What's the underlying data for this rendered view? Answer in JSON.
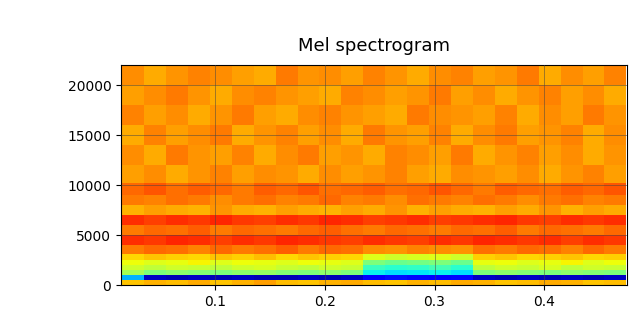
{
  "chart_data": {
    "type": "heatmap",
    "title": "Mel spectrogram",
    "color": "jet",
    "grid": true,
    "x": [
      0.025,
      0.045,
      0.065,
      0.085,
      0.105,
      0.125,
      0.145,
      0.165,
      0.185,
      0.205,
      0.225,
      0.245,
      0.265,
      0.285,
      0.305,
      0.325,
      0.345,
      0.365,
      0.385,
      0.405,
      0.425,
      0.445,
      0.465
    ],
    "y": [
      250,
      750,
      1250,
      1750,
      2250,
      2750,
      3500,
      4500,
      5500,
      6500,
      7500,
      8500,
      9500,
      11000,
      13000,
      15000,
      17000,
      19000,
      21000
    ],
    "cells": [
      [
        0.7,
        0.72,
        0.71,
        0.73,
        0.7,
        0.72,
        0.74,
        0.71,
        0.7,
        0.72,
        0.73,
        0.71,
        0.7,
        0.72,
        0.71,
        0.73,
        0.72,
        0.7,
        0.71,
        0.73,
        0.72,
        0.7,
        0.71
      ],
      [
        0.3,
        0.06,
        0.05,
        0.06,
        0.05,
        0.06,
        0.05,
        0.05,
        0.06,
        0.05,
        0.06,
        0.12,
        0.14,
        0.13,
        0.12,
        0.13,
        0.06,
        0.05,
        0.06,
        0.05,
        0.06,
        0.05,
        0.06
      ],
      [
        0.55,
        0.5,
        0.52,
        0.51,
        0.5,
        0.52,
        0.53,
        0.51,
        0.5,
        0.52,
        0.5,
        0.36,
        0.34,
        0.35,
        0.36,
        0.34,
        0.5,
        0.52,
        0.51,
        0.5,
        0.52,
        0.51,
        0.5
      ],
      [
        0.6,
        0.58,
        0.6,
        0.59,
        0.58,
        0.6,
        0.61,
        0.59,
        0.58,
        0.6,
        0.59,
        0.42,
        0.4,
        0.41,
        0.43,
        0.4,
        0.58,
        0.6,
        0.59,
        0.61,
        0.58,
        0.6,
        0.59
      ],
      [
        0.64,
        0.62,
        0.63,
        0.65,
        0.62,
        0.64,
        0.63,
        0.62,
        0.64,
        0.63,
        0.62,
        0.5,
        0.48,
        0.49,
        0.5,
        0.48,
        0.63,
        0.64,
        0.62,
        0.63,
        0.65,
        0.62,
        0.64
      ],
      [
        0.68,
        0.7,
        0.69,
        0.68,
        0.7,
        0.69,
        0.71,
        0.68,
        0.7,
        0.69,
        0.68,
        0.62,
        0.6,
        0.61,
        0.62,
        0.6,
        0.69,
        0.7,
        0.68,
        0.69,
        0.7,
        0.68,
        0.69
      ],
      [
        0.78,
        0.8,
        0.79,
        0.77,
        0.8,
        0.78,
        0.79,
        0.81,
        0.78,
        0.8,
        0.79,
        0.76,
        0.75,
        0.77,
        0.76,
        0.75,
        0.79,
        0.78,
        0.8,
        0.79,
        0.77,
        0.8,
        0.78
      ],
      [
        0.86,
        0.85,
        0.87,
        0.86,
        0.84,
        0.86,
        0.85,
        0.87,
        0.86,
        0.85,
        0.84,
        0.86,
        0.85,
        0.84,
        0.86,
        0.85,
        0.87,
        0.86,
        0.85,
        0.86,
        0.84,
        0.86,
        0.85
      ],
      [
        0.78,
        0.8,
        0.79,
        0.81,
        0.78,
        0.8,
        0.79,
        0.78,
        0.8,
        0.81,
        0.79,
        0.78,
        0.8,
        0.79,
        0.78,
        0.8,
        0.79,
        0.81,
        0.78,
        0.8,
        0.79,
        0.78,
        0.8
      ],
      [
        0.86,
        0.84,
        0.86,
        0.85,
        0.87,
        0.85,
        0.84,
        0.86,
        0.85,
        0.87,
        0.86,
        0.84,
        0.85,
        0.86,
        0.84,
        0.85,
        0.86,
        0.87,
        0.85,
        0.84,
        0.86,
        0.85,
        0.86
      ],
      [
        0.72,
        0.74,
        0.73,
        0.72,
        0.75,
        0.73,
        0.72,
        0.74,
        0.73,
        0.72,
        0.74,
        0.73,
        0.75,
        0.72,
        0.74,
        0.73,
        0.72,
        0.74,
        0.73,
        0.75,
        0.72,
        0.74,
        0.73
      ],
      [
        0.78,
        0.77,
        0.79,
        0.78,
        0.76,
        0.78,
        0.79,
        0.77,
        0.78,
        0.8,
        0.77,
        0.78,
        0.76,
        0.79,
        0.78,
        0.77,
        0.79,
        0.78,
        0.76,
        0.78,
        0.79,
        0.77,
        0.78
      ],
      [
        0.8,
        0.82,
        0.79,
        0.81,
        0.8,
        0.78,
        0.81,
        0.8,
        0.82,
        0.79,
        0.8,
        0.81,
        0.79,
        0.8,
        0.82,
        0.8,
        0.78,
        0.81,
        0.8,
        0.79,
        0.81,
        0.8,
        0.82
      ],
      [
        0.74,
        0.76,
        0.73,
        0.75,
        0.77,
        0.74,
        0.76,
        0.75,
        0.73,
        0.76,
        0.74,
        0.75,
        0.77,
        0.74,
        0.73,
        0.76,
        0.75,
        0.74,
        0.76,
        0.73,
        0.75,
        0.77,
        0.74
      ],
      [
        0.76,
        0.73,
        0.78,
        0.75,
        0.74,
        0.77,
        0.73,
        0.76,
        0.78,
        0.74,
        0.75,
        0.73,
        0.77,
        0.76,
        0.74,
        0.78,
        0.73,
        0.75,
        0.77,
        0.74,
        0.76,
        0.73,
        0.75
      ],
      [
        0.73,
        0.77,
        0.74,
        0.76,
        0.78,
        0.73,
        0.75,
        0.77,
        0.74,
        0.76,
        0.73,
        0.78,
        0.75,
        0.74,
        0.77,
        0.73,
        0.76,
        0.78,
        0.74,
        0.75,
        0.77,
        0.73,
        0.76
      ],
      [
        0.77,
        0.74,
        0.76,
        0.73,
        0.75,
        0.78,
        0.74,
        0.73,
        0.76,
        0.77,
        0.75,
        0.74,
        0.73,
        0.78,
        0.76,
        0.75,
        0.74,
        0.77,
        0.73,
        0.76,
        0.74,
        0.78,
        0.75
      ],
      [
        0.74,
        0.76,
        0.78,
        0.75,
        0.73,
        0.76,
        0.77,
        0.75,
        0.74,
        0.73,
        0.77,
        0.76,
        0.74,
        0.75,
        0.78,
        0.74,
        0.76,
        0.73,
        0.75,
        0.77,
        0.74,
        0.76,
        0.73
      ],
      [
        0.76,
        0.73,
        0.75,
        0.77,
        0.76,
        0.74,
        0.73,
        0.78,
        0.75,
        0.76,
        0.74,
        0.77,
        0.75,
        0.73,
        0.76,
        0.77,
        0.74,
        0.75,
        0.78,
        0.73,
        0.76,
        0.74,
        0.77
      ]
    ],
    "color_range": [
      0,
      1
    ],
    "xlim": [
      0.014,
      0.476
    ],
    "xticks": [
      0.1,
      0.2,
      0.3,
      0.4
    ],
    "ylim": [
      0,
      22050
    ],
    "yticks": [
      0,
      5000,
      10000,
      15000,
      20000
    ]
  }
}
